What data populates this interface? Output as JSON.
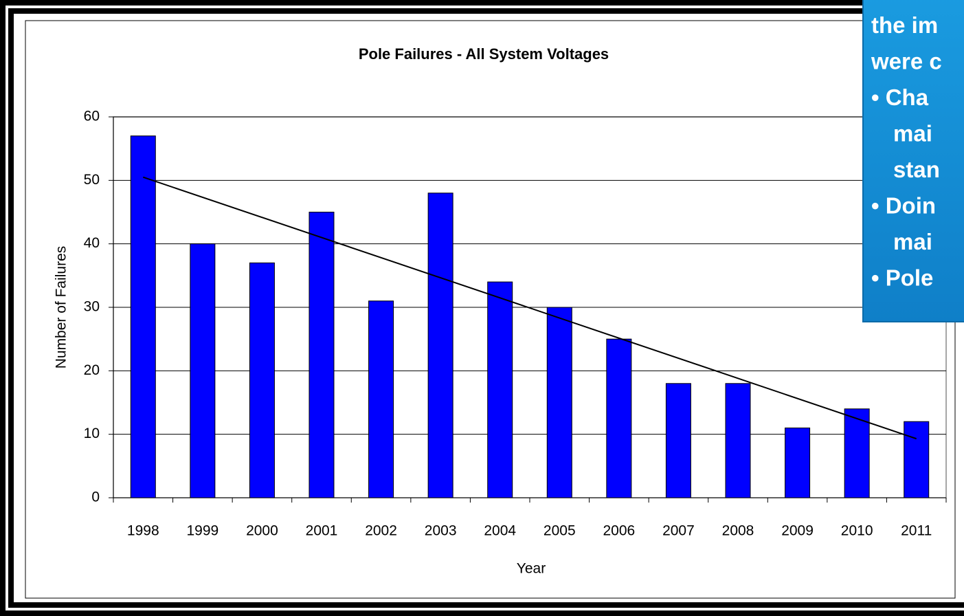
{
  "chart_data": {
    "type": "bar",
    "title": "Pole Failures - All System Voltages",
    "x_label": "Year",
    "y_label": "Number of  Failures",
    "categories": [
      "1998",
      "1999",
      "2000",
      "2001",
      "2002",
      "2003",
      "2004",
      "2005",
      "2006",
      "2007",
      "2008",
      "2009",
      "2010",
      "2011"
    ],
    "values": [
      57,
      40,
      37,
      45,
      31,
      48,
      34,
      30,
      25,
      18,
      18,
      11,
      14,
      12
    ],
    "color": "#0000ff",
    "trendline": {
      "values": [
        50.5,
        9.3
      ],
      "color": "#000000"
    },
    "ylim": [
      0,
      60
    ],
    "yticks": [
      0,
      10,
      20,
      30,
      40,
      50,
      60
    ],
    "grid": true,
    "annotation_lines": [
      "the im",
      "were c",
      "• Cha",
      "mai",
      "stan",
      "• Doin",
      "mai",
      "• Pole"
    ]
  }
}
